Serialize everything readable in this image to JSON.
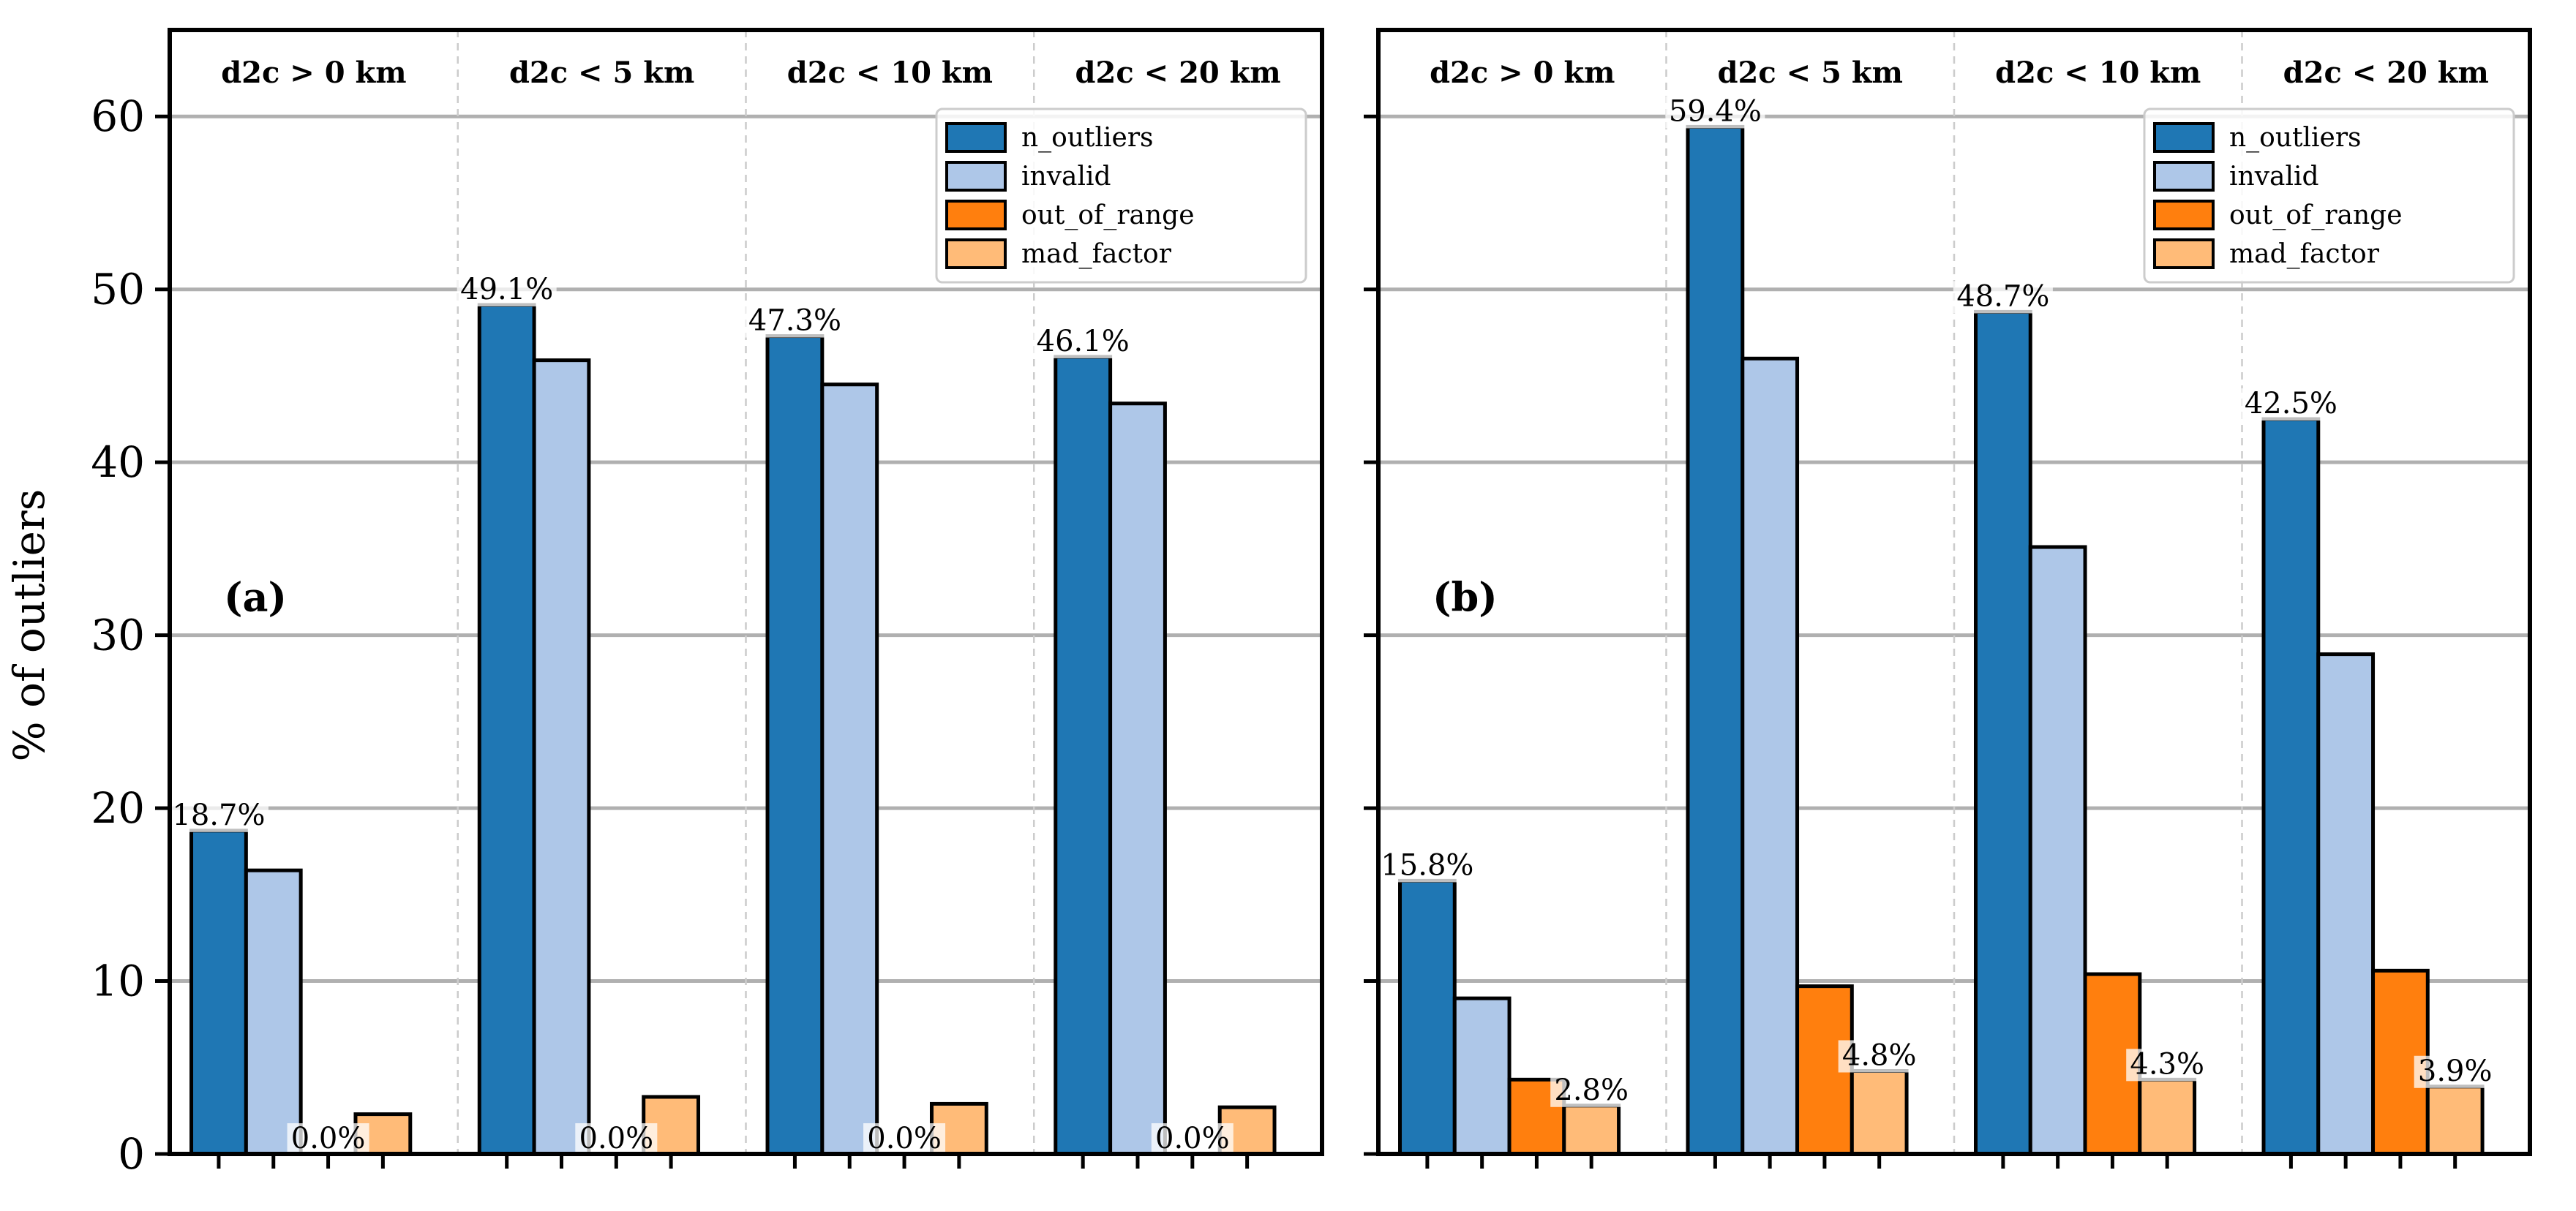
{
  "figure": {
    "ylabel": "% of outliers",
    "y_ticks": [
      "0",
      "10",
      "20",
      "30",
      "40",
      "50",
      "60"
    ],
    "colors": {
      "n_outliers": "#1f77b4",
      "invalid": "#aec7e8",
      "out_of_range": "#ff7f0e",
      "mad_factor": "#ffbb78",
      "grid": "#b0b0b0",
      "separator": "#cccccc"
    }
  },
  "chart_data": [
    {
      "type": "bar",
      "panel_label": "(a)",
      "categories": [
        "d2c > 0 km",
        "d2c < 5 km",
        "d2c < 10 km",
        "d2c < 20 km"
      ],
      "series": [
        {
          "name": "n_outliers",
          "values": [
            18.7,
            49.1,
            47.3,
            46.1
          ]
        },
        {
          "name": "invalid",
          "values": [
            16.4,
            45.9,
            44.5,
            43.4
          ]
        },
        {
          "name": "out_of_range",
          "values": [
            0.0,
            0.0,
            0.0,
            0.0
          ]
        },
        {
          "name": "mad_factor",
          "values": [
            2.3,
            3.3,
            2.9,
            2.7
          ]
        }
      ],
      "labels": [
        {
          "category_index": 0,
          "series_index": 0,
          "text": "18.7%"
        },
        {
          "category_index": 1,
          "series_index": 0,
          "text": "49.1%"
        },
        {
          "category_index": 2,
          "series_index": 0,
          "text": "47.3%"
        },
        {
          "category_index": 3,
          "series_index": 0,
          "text": "46.1%"
        },
        {
          "category_index": 0,
          "series_index": 2,
          "text": "0.0%"
        },
        {
          "category_index": 1,
          "series_index": 2,
          "text": "0.0%"
        },
        {
          "category_index": 2,
          "series_index": 2,
          "text": "0.0%"
        },
        {
          "category_index": 3,
          "series_index": 2,
          "text": "0.0%"
        }
      ],
      "ylim": [
        0,
        65
      ],
      "ylabel": "% of outliers",
      "grid": true,
      "legend": "top-right"
    },
    {
      "type": "bar",
      "panel_label": "(b)",
      "categories": [
        "d2c > 0 km",
        "d2c < 5 km",
        "d2c < 10 km",
        "d2c < 20 km"
      ],
      "series": [
        {
          "name": "n_outliers",
          "values": [
            15.8,
            59.4,
            48.7,
            42.5
          ]
        },
        {
          "name": "invalid",
          "values": [
            9.0,
            46.0,
            35.1,
            28.9
          ]
        },
        {
          "name": "out_of_range",
          "values": [
            4.3,
            9.7,
            10.4,
            10.6
          ]
        },
        {
          "name": "mad_factor",
          "values": [
            2.8,
            4.8,
            4.3,
            3.9
          ]
        }
      ],
      "labels": [
        {
          "category_index": 0,
          "series_index": 0,
          "text": "15.8%"
        },
        {
          "category_index": 1,
          "series_index": 0,
          "text": "59.4%"
        },
        {
          "category_index": 2,
          "series_index": 0,
          "text": "48.7%"
        },
        {
          "category_index": 3,
          "series_index": 0,
          "text": "42.5%"
        },
        {
          "category_index": 0,
          "series_index": 3,
          "text": "2.8%"
        },
        {
          "category_index": 1,
          "series_index": 3,
          "text": "4.8%"
        },
        {
          "category_index": 2,
          "series_index": 3,
          "text": "4.3%"
        },
        {
          "category_index": 3,
          "series_index": 3,
          "text": "3.9%"
        }
      ],
      "ylim": [
        0,
        65
      ],
      "grid": true,
      "legend": "top-right"
    }
  ]
}
